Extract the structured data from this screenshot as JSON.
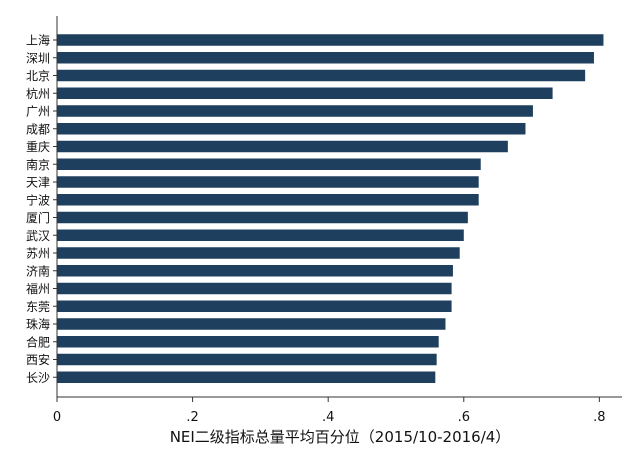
{
  "chart_data": {
    "type": "bar",
    "orientation": "horizontal",
    "categories": [
      "上海",
      "深圳",
      "北京",
      "杭州",
      "广州",
      "成都",
      "重庆",
      "南京",
      "天津",
      "宁波",
      "厦门",
      "武汉",
      "苏州",
      "济南",
      "福州",
      "东莞",
      "珠海",
      "合肥",
      "西安",
      "长沙"
    ],
    "values": [
      0.806,
      0.792,
      0.779,
      0.731,
      0.702,
      0.691,
      0.665,
      0.625,
      0.622,
      0.622,
      0.606,
      0.6,
      0.594,
      0.584,
      0.582,
      0.582,
      0.573,
      0.563,
      0.56,
      0.558
    ],
    "xlabel": "NEI二级指标总量平均百分位（2015/10-2016/4）",
    "ylabel": "",
    "xlim": [
      0,
      0.826
    ],
    "xticks": [
      0,
      0.2,
      0.4,
      0.6,
      0.8
    ],
    "xtick_labels": [
      "0",
      ".2",
      ".4",
      ".6",
      ".8"
    ],
    "grid": false,
    "legend": "none",
    "colors": {
      "bar": "#1f3f5f",
      "axis": "#333333"
    }
  }
}
